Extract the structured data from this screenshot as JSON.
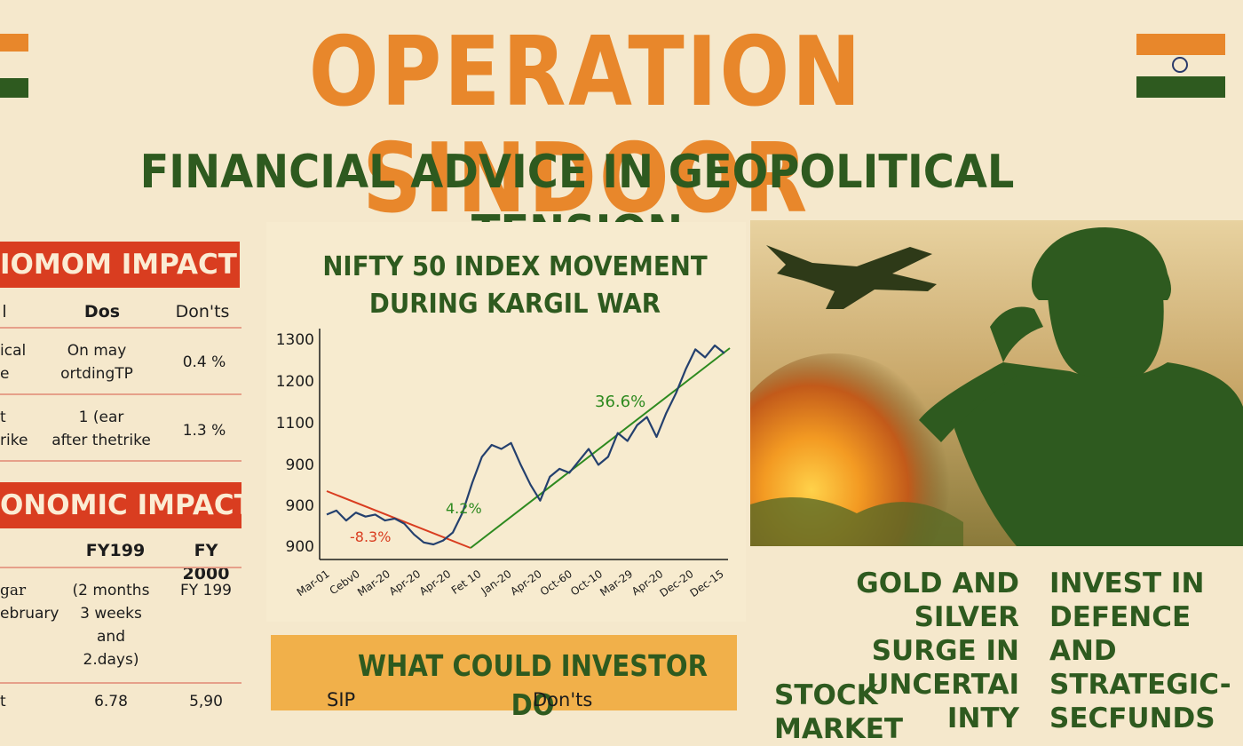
{
  "header": {
    "title": "OPERATION SINDOOR",
    "subtitle": "FINANCIAL ADVICE IN GEOPOLITICAL TENSION"
  },
  "left_panel": {
    "section1": {
      "banner": "IOMOM IMPACT",
      "headers": [
        "l",
        "Dos",
        "Don'ts"
      ],
      "rows": [
        {
          "c0": [
            "ical",
            "e"
          ],
          "c1": [
            "On may",
            "ortdingTP"
          ],
          "c2": "0.4 %"
        },
        {
          "c0": [
            "t",
            "rike"
          ],
          "c1": [
            "1 (ear",
            "after thetrike"
          ],
          "c2": "1.3 %"
        }
      ]
    },
    "section2": {
      "banner": "ONOMIC IMPACT",
      "headers": [
        "FY199",
        "FY 2000"
      ],
      "rows": [
        {
          "c0": [
            "gar",
            "ebruary"
          ],
          "c1": [
            "(2 months",
            "3 weeks",
            "and",
            "2.days)"
          ],
          "c2": "FY 199"
        },
        {
          "c0": [
            "t"
          ],
          "c1": [
            "6.78"
          ],
          "c2": "5,90"
        }
      ]
    }
  },
  "chart_data": {
    "type": "line",
    "title": "NIFTY 50 INDEX MOVEMENT DURING KARGIL WAR",
    "title_lines": [
      "NIFTY 50 INDEX MOVEMENT",
      "DURING KARGIL WAR"
    ],
    "y_tick_labels": [
      "1300",
      "1200",
      "1100",
      "900",
      "900",
      "900"
    ],
    "x_tick_labels": [
      "Mar-01",
      "Cebv0",
      "Mar-20",
      "Apr-20",
      "Apr-20",
      "Fet 10",
      "Jan-20",
      "Apr-20",
      "Oct-60",
      "Oct-10",
      "Mar-29",
      "Apr-20",
      "Dec-20",
      "Dec-15"
    ],
    "series": [
      {
        "values": [
          895,
          905,
          880,
          900,
          890,
          895,
          880,
          885,
          872,
          845,
          825,
          820,
          830,
          850,
          900,
          975,
          1040,
          1070,
          1060,
          1075,
          1020,
          970,
          930,
          990,
          1010,
          1000,
          1030,
          1060,
          1020,
          1040,
          1100,
          1080,
          1120,
          1140,
          1090,
          1150,
          1200,
          1260,
          1310,
          1290,
          1320,
          1300
        ]
      }
    ],
    "trend_down_label": "-8.3%",
    "trend_up_label": "36.6%",
    "trough_label": "4.2%",
    "colors": {
      "line": "#24406e",
      "down": "#d93d20",
      "up": "#2e8a1f",
      "axis": "#1c1c1c"
    }
  },
  "investor_box": {
    "title": "WHAT COULD INVESTOR DO",
    "col1": "SIP",
    "col2": "Don'ts"
  },
  "headlines": {
    "gold": [
      "GOLD AND SILVER",
      "SURGE IN UNCERTAI",
      "INTY"
    ],
    "stock": "STOCK MARKET",
    "invest": [
      "INVEST IN",
      "DEFENCE AND",
      "STRATEGIC-",
      "SECFUNDS"
    ]
  },
  "colors": {
    "background": "#f5e8cc",
    "saffron": "#e8872b",
    "green": "#2e5a1f",
    "red": "#d93d20",
    "investor_box": "#f1b04a"
  }
}
